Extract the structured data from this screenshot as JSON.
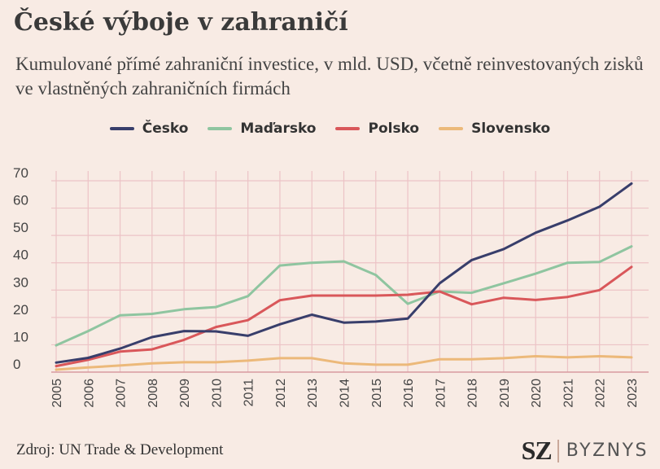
{
  "chart_data": {
    "type": "line",
    "title": "České výboje v zahraničí",
    "subtitle": "Kumulované přímé zahraniční investice, v mld. USD, včetně reinvestovaných zisků ve vlastněných zahraničních firmách",
    "xlabel": "",
    "ylabel": "",
    "ylim": [
      0,
      70
    ],
    "yticks": [
      "0",
      "10",
      "20",
      "30",
      "40",
      "50",
      "60",
      "70"
    ],
    "grid": true,
    "legend_position": "top-center",
    "categories": [
      "2005",
      "2006",
      "2007",
      "2008",
      "2009",
      "2010",
      "2011",
      "2012",
      "2013",
      "2014",
      "2015",
      "2016",
      "2017",
      "2018",
      "2019",
      "2020",
      "2021",
      "2022",
      "2023"
    ],
    "series": [
      {
        "name": "Česko",
        "color": "#383e6b",
        "values": [
          3.5,
          5.2,
          8.6,
          12.8,
          15.0,
          14.9,
          13.3,
          17.5,
          21.0,
          18.1,
          18.5,
          19.6,
          32.5,
          41.0,
          45.0,
          51.0,
          55.5,
          60.5,
          69.0
        ]
      },
      {
        "name": "Maďarsko",
        "color": "#8fc5a0",
        "values": [
          9.8,
          15.0,
          20.8,
          21.3,
          23.0,
          23.8,
          27.8,
          39.0,
          40.0,
          40.5,
          35.5,
          25.0,
          29.5,
          29.0,
          32.5,
          36.0,
          40.0,
          40.3,
          46.0
        ]
      },
      {
        "name": "Polsko",
        "color": "#d9575a",
        "values": [
          2.2,
          4.5,
          7.5,
          8.3,
          11.8,
          16.5,
          19.0,
          26.3,
          28.0,
          28.0,
          28.0,
          28.3,
          29.5,
          24.8,
          27.2,
          26.4,
          27.5,
          30.0,
          38.5
        ]
      },
      {
        "name": "Slovensko",
        "color": "#ecb97a",
        "values": [
          0.9,
          1.7,
          2.4,
          3.2,
          3.6,
          3.6,
          4.2,
          5.1,
          5.1,
          3.2,
          2.7,
          2.7,
          4.7,
          4.7,
          5.1,
          5.8,
          5.4,
          5.8,
          5.4
        ]
      }
    ]
  },
  "footer": {
    "source": "Zdroj: UN Trade & Development",
    "brand_main": "SZ",
    "brand_sub": "BYZNYS"
  },
  "colors": {
    "background": "#f8ebe4",
    "grid": "#ecc3c6"
  }
}
